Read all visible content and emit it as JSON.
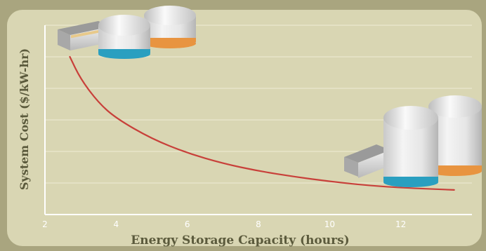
{
  "chart_data": {
    "type": "line",
    "xlabel": "Energy Storage Capacity (hours)",
    "ylabel": "System Cost ($/kW-hr)",
    "x_ticks": [
      "2",
      "4",
      "6",
      "8",
      "10",
      "12"
    ],
    "xlim": [
      2,
      14
    ],
    "ylim": [
      0,
      6
    ],
    "grid": true,
    "series": [
      {
        "color": "#c8403a",
        "x": [
          2.7,
          3.0,
          3.5,
          4.0,
          5.0,
          6.0,
          7.0,
          8.0,
          9.0,
          10.0,
          11.0,
          12.0,
          13.5
        ],
        "y": [
          5.0,
          4.3,
          3.55,
          3.05,
          2.4,
          1.95,
          1.62,
          1.38,
          1.2,
          1.05,
          0.93,
          0.85,
          0.78
        ]
      }
    ],
    "annotations": [
      "small-storage-system-illustration",
      "large-storage-system-illustration"
    ]
  },
  "colors": {
    "frame": "#a9a57f",
    "plot_bg": "#d9d6b3",
    "gridline": "#eeecd6",
    "text": "#5b5a3c",
    "curve": "#c8403a"
  }
}
